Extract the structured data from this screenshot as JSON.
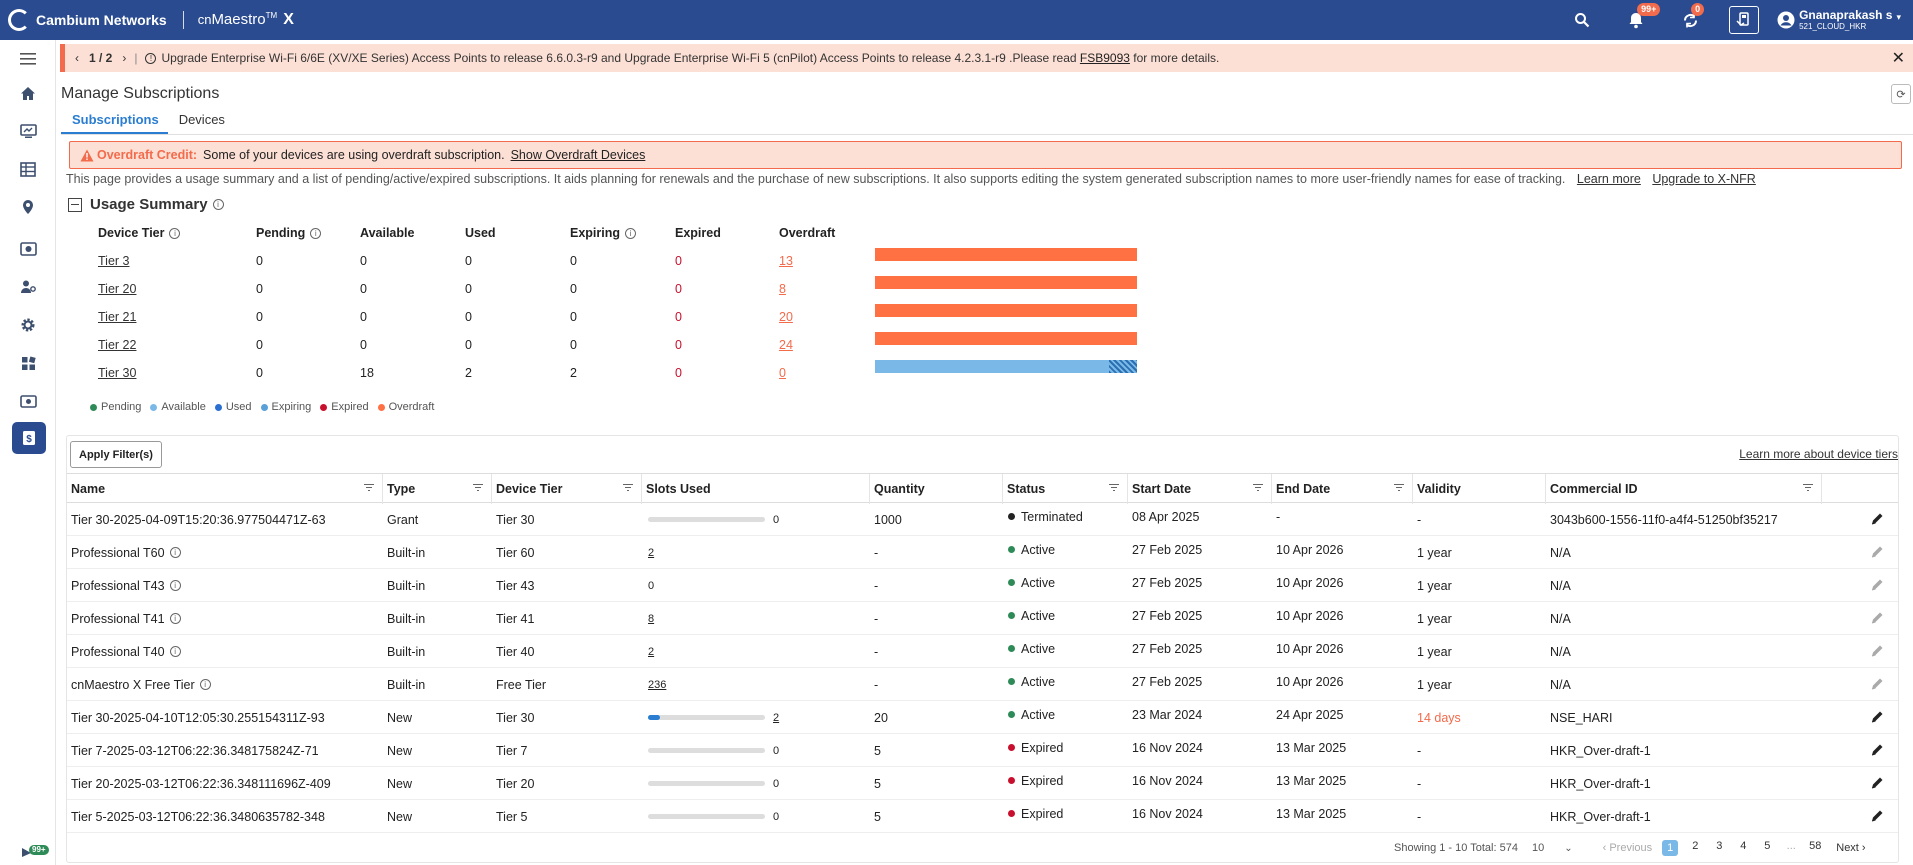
{
  "header": {
    "brand": "Cambium Networks",
    "product_prefix": "cn",
    "product_name": "Maestro",
    "product_tm": "TM",
    "product_x": "X",
    "notifications_badge": "99+",
    "sync_badge": "0",
    "user_name": "Gnanaprakash s",
    "user_org": "521_CLOUD_HKR"
  },
  "banner": {
    "pager": "1 / 2",
    "text": "Upgrade Enterprise Wi-Fi 6/6E (XV/XE Series) Access Points to release 6.6.0.3-r9 and Upgrade Enterprise Wi-Fi 5 (cnPilot) Access Points to release 4.2.3.1-r9 .Please read",
    "link": "FSB9093",
    "suffix": "for more details."
  },
  "page": {
    "title": "Manage Subscriptions",
    "tabs": [
      "Subscriptions",
      "Devices"
    ]
  },
  "alert": {
    "label": "Overdraft Credit:",
    "text": "Some of your devices are using overdraft subscription.",
    "link": "Show Overdraft Devices"
  },
  "description": {
    "text": "This page provides a usage summary and a list of pending/active/expired subscriptions. It aids planning for renewals and the purchase of new subscriptions. It also supports editing the system generated subscription names to more user-friendly names for ease of tracking.",
    "learn_more": "Learn more",
    "upgrade": "Upgrade to X-NFR"
  },
  "usage": {
    "title": "Usage Summary",
    "columns": [
      "Device Tier",
      "Pending",
      "Available",
      "Used",
      "Expiring",
      "Expired",
      "Overdraft"
    ],
    "rows": [
      {
        "tier": "Tier 3",
        "pending": "0",
        "available": "0",
        "used": "0",
        "expiring": "0",
        "expired": "0",
        "overdraft": "13"
      },
      {
        "tier": "Tier 20",
        "pending": "0",
        "available": "0",
        "used": "0",
        "expiring": "0",
        "expired": "0",
        "overdraft": "8"
      },
      {
        "tier": "Tier 21",
        "pending": "0",
        "available": "0",
        "used": "0",
        "expiring": "0",
        "expired": "0",
        "overdraft": "20"
      },
      {
        "tier": "Tier 22",
        "pending": "0",
        "available": "0",
        "used": "0",
        "expiring": "0",
        "expired": "0",
        "overdraft": "24"
      },
      {
        "tier": "Tier 30",
        "pending": "0",
        "available": "18",
        "used": "2",
        "expiring": "2",
        "expired": "0",
        "overdraft": "0"
      }
    ],
    "legend": [
      {
        "label": "Pending",
        "color": "#2e8b57"
      },
      {
        "label": "Available",
        "color": "#7ab8e8"
      },
      {
        "label": "Used",
        "color": "#2a6fd1"
      },
      {
        "label": "Expiring",
        "color": "#5aa0d8"
      },
      {
        "label": "Expired",
        "color": "#c8102e"
      },
      {
        "label": "Overdraft",
        "color": "#ff7043"
      }
    ]
  },
  "table": {
    "apply_filters": "Apply Filter(s)",
    "learn_tiers": "Learn more about device tiers",
    "columns": [
      "Name",
      "Type",
      "Device Tier",
      "Slots Used",
      "Quantity",
      "Status",
      "Start Date",
      "End Date",
      "Validity",
      "Commercial ID"
    ],
    "rows": [
      {
        "name": "Tier 30-2025-04-09T15:20:36.977504471Z-63",
        "info": false,
        "type": "Grant",
        "tier": "Tier 30",
        "slots": "0",
        "slots_bar": true,
        "slots_fraction": 0,
        "quantity": "1000",
        "status": "Terminated",
        "status_color": "#222222",
        "start": "08 Apr 2025",
        "end": "-",
        "validity": "-",
        "validity_warn": false,
        "cid": "3043b600-1556-11f0-a4f4-51250bf35217",
        "edit_dark": true
      },
      {
        "name": "Professional T60",
        "info": true,
        "type": "Built-in",
        "tier": "Tier 60",
        "slots": "2",
        "slots_bar": false,
        "slots_fraction": 0,
        "quantity": "-",
        "status": "Active",
        "status_color": "#2e8b57",
        "start": "27 Feb 2025",
        "end": "10 Apr 2026",
        "validity": "1 year",
        "validity_warn": false,
        "cid": "N/A",
        "edit_dark": false
      },
      {
        "name": "Professional T43",
        "info": true,
        "type": "Built-in",
        "tier": "Tier 43",
        "slots": "0",
        "slots_bar": false,
        "slots_fraction": 0,
        "quantity": "-",
        "status": "Active",
        "status_color": "#2e8b57",
        "start": "27 Feb 2025",
        "end": "10 Apr 2026",
        "validity": "1 year",
        "validity_warn": false,
        "cid": "N/A",
        "edit_dark": false
      },
      {
        "name": "Professional T41",
        "info": true,
        "type": "Built-in",
        "tier": "Tier 41",
        "slots": "8",
        "slots_bar": false,
        "slots_fraction": 0,
        "quantity": "-",
        "status": "Active",
        "status_color": "#2e8b57",
        "start": "27 Feb 2025",
        "end": "10 Apr 2026",
        "validity": "1 year",
        "validity_warn": false,
        "cid": "N/A",
        "edit_dark": false
      },
      {
        "name": "Professional T40",
        "info": true,
        "type": "Built-in",
        "tier": "Tier 40",
        "slots": "2",
        "slots_bar": false,
        "slots_fraction": 0,
        "quantity": "-",
        "status": "Active",
        "status_color": "#2e8b57",
        "start": "27 Feb 2025",
        "end": "10 Apr 2026",
        "validity": "1 year",
        "validity_warn": false,
        "cid": "N/A",
        "edit_dark": false
      },
      {
        "name": "cnMaestro X Free Tier",
        "info": true,
        "type": "Built-in",
        "tier": "Free Tier",
        "slots": "236",
        "slots_bar": false,
        "slots_fraction": 0,
        "quantity": "-",
        "status": "Active",
        "status_color": "#2e8b57",
        "start": "27 Feb 2025",
        "end": "10 Apr 2026",
        "validity": "1 year",
        "validity_warn": false,
        "cid": "N/A",
        "edit_dark": false
      },
      {
        "name": "Tier 30-2025-04-10T12:05:30.255154311Z-93",
        "info": false,
        "type": "New",
        "tier": "Tier 30",
        "slots": "2",
        "slots_bar": true,
        "slots_fraction": 0.1,
        "quantity": "20",
        "status": "Active",
        "status_color": "#2e8b57",
        "start": "23 Mar 2024",
        "end": "24 Apr 2025",
        "validity": "14 days",
        "validity_warn": true,
        "cid": "NSE_HARI",
        "edit_dark": true
      },
      {
        "name": "Tier 7-2025-03-12T06:22:36.348175824Z-71",
        "info": false,
        "type": "New",
        "tier": "Tier 7",
        "slots": "0",
        "slots_bar": true,
        "slots_fraction": 0,
        "quantity": "5",
        "status": "Expired",
        "status_color": "#c8102e",
        "start": "16 Nov 2024",
        "end": "13 Mar 2025",
        "validity": "-",
        "validity_warn": false,
        "cid": "HKR_Over-draft-1",
        "edit_dark": true
      },
      {
        "name": "Tier 20-2025-03-12T06:22:36.348111696Z-409",
        "info": false,
        "type": "New",
        "tier": "Tier 20",
        "slots": "0",
        "slots_bar": true,
        "slots_fraction": 0,
        "quantity": "5",
        "status": "Expired",
        "status_color": "#c8102e",
        "start": "16 Nov 2024",
        "end": "13 Mar 2025",
        "validity": "-",
        "validity_warn": false,
        "cid": "HKR_Over-draft-1",
        "edit_dark": true
      },
      {
        "name": "Tier 5-2025-03-12T06:22:36.3480635782-348",
        "info": false,
        "type": "New",
        "tier": "Tier 5",
        "slots": "0",
        "slots_bar": true,
        "slots_fraction": 0,
        "quantity": "5",
        "status": "Expired",
        "status_color": "#c8102e",
        "start": "16 Nov 2024",
        "end": "13 Mar 2025",
        "validity": "-",
        "validity_warn": false,
        "cid": "HKR_Over-draft-1",
        "edit_dark": true
      }
    ]
  },
  "pagination": {
    "showing": "Showing 1 - 10 Total: 574",
    "page_size": "10",
    "previous": "Previous",
    "pages": [
      "1",
      "2",
      "3",
      "4",
      "5",
      "...",
      "58"
    ],
    "next": "Next"
  },
  "sidebar_badge": "99+"
}
